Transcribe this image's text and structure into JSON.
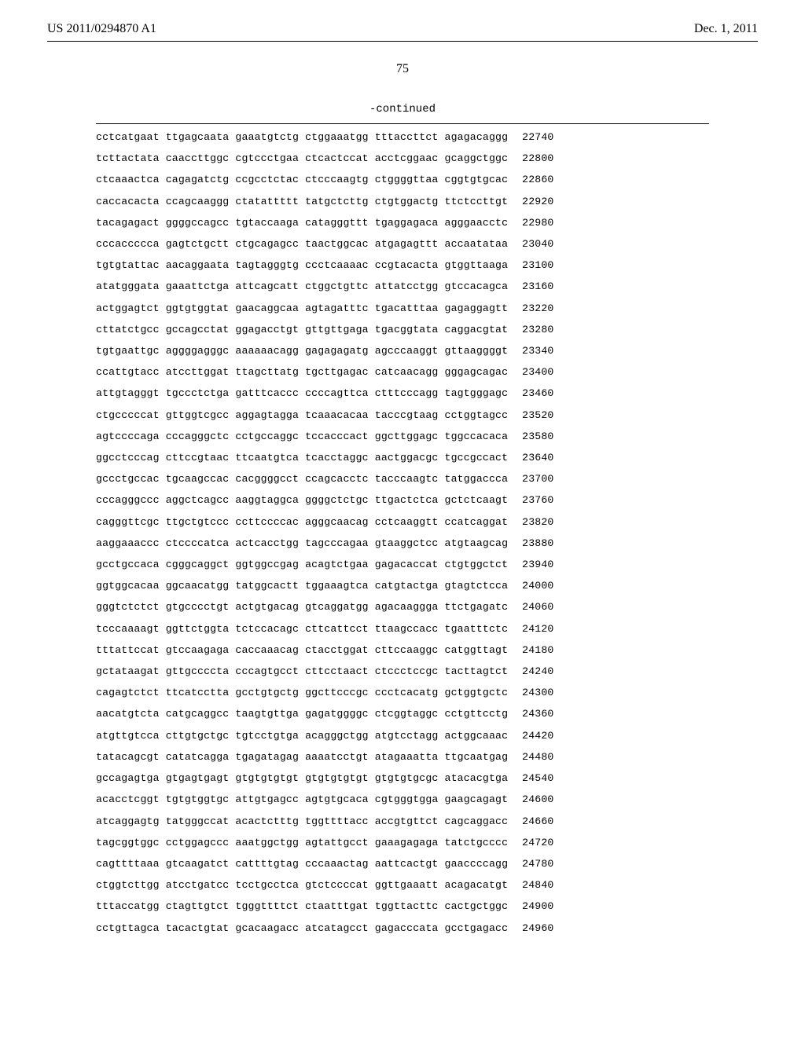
{
  "header": {
    "pub_no": "US 2011/0294870 A1",
    "pub_date": "Dec. 1, 2011"
  },
  "page_number": "75",
  "continued_label": "-continued",
  "sequence": {
    "type": "monospace-sequence-listing",
    "font_family": "Courier New",
    "font_size_pt": 10,
    "line_spacing": "double",
    "background_color": "#ffffff",
    "text_color": "#000000",
    "rule_color": "#000000",
    "rows": [
      {
        "seq": "cctcatgaat ttgagcaata gaaatgtctg ctggaaatgg tttaccttct agagacaggg",
        "idx": 22740
      },
      {
        "seq": "tcttactata caaccttggc cgtccctgaa ctcactccat acctcggaac gcaggctggc",
        "idx": 22800
      },
      {
        "seq": "ctcaaactca cagagatctg ccgcctctac ctcccaagtg ctggggttaa cggtgtgcac",
        "idx": 22860
      },
      {
        "seq": "caccacacta ccagcaaggg ctatattttt tatgctcttg ctgtggactg ttctccttgt",
        "idx": 22920
      },
      {
        "seq": "tacagagact ggggccagcc tgtaccaaga catagggttt tgaggagaca agggaacctc",
        "idx": 22980
      },
      {
        "seq": "cccaccccca gagtctgctt ctgcagagcc taactggcac atgagagttt accaatataa",
        "idx": 23040
      },
      {
        "seq": "tgtgtattac aacaggaata tagtagggtg ccctcaaaac ccgtacacta gtggttaaga",
        "idx": 23100
      },
      {
        "seq": "atatgggata gaaattctga attcagcatt ctggctgttc attatcctgg gtccacagca",
        "idx": 23160
      },
      {
        "seq": "actggagtct ggtgtggtat gaacaggcaa agtagatttc tgacatttaa gagaggagtt",
        "idx": 23220
      },
      {
        "seq": "cttatctgcc gccagcctat ggagacctgt gttgttgaga tgacggtata caggacgtat",
        "idx": 23280
      },
      {
        "seq": "tgtgaattgc aggggagggc aaaaaacagg gagagagatg agcccaaggt gttaaggggt",
        "idx": 23340
      },
      {
        "seq": "ccattgtacc atccttggat ttagcttatg tgcttgagac catcaacagg gggagcagac",
        "idx": 23400
      },
      {
        "seq": "attgtagggt tgccctctga gatttcaccc ccccagttca ctttcccagg tagtgggagc",
        "idx": 23460
      },
      {
        "seq": "ctgcccccat gttggtcgcc aggagtagga tcaaacacaa tacccgtaag cctggtagcc",
        "idx": 23520
      },
      {
        "seq": "agtccccaga cccagggctc cctgccaggc tccacccact ggcttggagc tggccacaca",
        "idx": 23580
      },
      {
        "seq": "ggcctcccag cttccgtaac ttcaatgtca tcacctaggc aactggacgc tgccgccact",
        "idx": 23640
      },
      {
        "seq": "gccctgccac tgcaagccac cacggggcct ccagcacctc tacccaagtc tatggaccca",
        "idx": 23700
      },
      {
        "seq": "cccagggccc aggctcagcc aaggtaggca ggggctctgc ttgactctca gctctcaagt",
        "idx": 23760
      },
      {
        "seq": "cagggttcgc ttgctgtccc ccttccccac agggcaacag cctcaaggtt ccatcaggat",
        "idx": 23820
      },
      {
        "seq": "aaggaaaccc ctccccatca actcacctgg tagcccagaa gtaaggctcc atgtaagcag",
        "idx": 23880
      },
      {
        "seq": "gcctgccaca cgggcaggct ggtggccgag acagtctgaa gagacaccat ctgtggctct",
        "idx": 23940
      },
      {
        "seq": "ggtggcacaa ggcaacatgg tatggcactt tggaaagtca catgtactga gtagtctcca",
        "idx": 24000
      },
      {
        "seq": "gggtctctct gtgcccctgt actgtgacag gtcaggatgg agacaaggga ttctgagatc",
        "idx": 24060
      },
      {
        "seq": "tcccaaaagt ggttctggta tctccacagc cttcattcct ttaagccacc tgaatttctc",
        "idx": 24120
      },
      {
        "seq": "tttattccat gtccaagaga caccaaacag ctacctggat cttccaaggc catggttagt",
        "idx": 24180
      },
      {
        "seq": "gctataagat gttgccccta cccagtgcct cttcctaact ctccctccgc tacttagtct",
        "idx": 24240
      },
      {
        "seq": "cagagtctct ttcatcctta gcctgtgctg ggcttcccgc ccctcacatg gctggtgctc",
        "idx": 24300
      },
      {
        "seq": "aacatgtcta catgcaggcc taagtgttga gagatggggc ctcggtaggc cctgttcctg",
        "idx": 24360
      },
      {
        "seq": "atgttgtcca cttgtgctgc tgtcctgtga acagggctgg atgtcctagg actggcaaac",
        "idx": 24420
      },
      {
        "seq": "tatacagcgt catatcagga tgagatagag aaaatcctgt atagaaatta ttgcaatgag",
        "idx": 24480
      },
      {
        "seq": "gccagagtga gtgagtgagt gtgtgtgtgt gtgtgtgtgt gtgtgtgcgc atacacgtga",
        "idx": 24540
      },
      {
        "seq": "acacctcggt tgtgtggtgc attgtgagcc agtgtgcaca cgtgggtgga gaagcagagt",
        "idx": 24600
      },
      {
        "seq": "atcaggagtg tatgggccat acactctttg tggttttacc accgtgttct cagcaggacc",
        "idx": 24660
      },
      {
        "seq": "tagcggtggc cctggagccc aaatggctgg agtattgcct gaaagagaga tatctgcccc",
        "idx": 24720
      },
      {
        "seq": "cagttttaaa gtcaagatct cattttgtag cccaaactag aattcactgt gaaccccagg",
        "idx": 24780
      },
      {
        "seq": "ctggtcttgg atcctgatcc tcctgcctca gtctccccat ggttgaaatt acagacatgt",
        "idx": 24840
      },
      {
        "seq": "tttaccatgg ctagttgtct tgggttttct ctaatttgat tggttacttc cactgctggc",
        "idx": 24900
      },
      {
        "seq": "cctgttagca tacactgtat gcacaagacc atcatagcct gagacccata gcctgagacc",
        "idx": 24960
      }
    ]
  }
}
